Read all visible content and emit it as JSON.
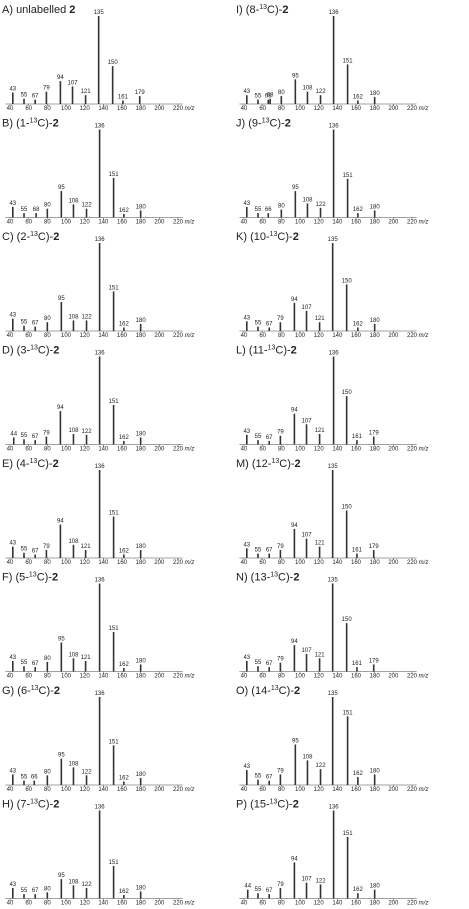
{
  "chart_data": [
    {
      "type": "bar",
      "label": "A)",
      "title": {
        "before": "unlabelled ",
        "compound": "2"
      },
      "x": [
        43,
        55,
        67,
        79,
        94,
        107,
        121,
        135,
        150,
        161,
        179
      ],
      "values": [
        13,
        6,
        5,
        14,
        26,
        20,
        10,
        100,
        43,
        4,
        9
      ],
      "xlim": [
        35,
        225
      ],
      "ylim": [
        0,
        100
      ],
      "xticks": [
        40,
        60,
        80,
        100,
        120,
        140,
        160,
        180,
        200,
        220
      ],
      "xlabel": "m/z",
      "color": "#333333"
    },
    {
      "type": "bar",
      "label": "B)",
      "title": {
        "before": "(1-",
        "isotope": "13",
        "after": "C)-",
        "compound": "2"
      },
      "x": [
        43,
        55,
        68,
        80,
        95,
        108,
        122,
        136,
        151,
        162,
        180
      ],
      "values": [
        12,
        5,
        5,
        10,
        30,
        15,
        10,
        100,
        45,
        4,
        8
      ],
      "xlim": [
        35,
        225
      ],
      "ylim": [
        0,
        100
      ],
      "xticks": [
        40,
        60,
        80,
        100,
        120,
        140,
        160,
        180,
        200,
        220
      ],
      "xlabel": "m/z",
      "color": "#333333"
    },
    {
      "type": "bar",
      "label": "C)",
      "title": {
        "before": "(2-",
        "isotope": "13",
        "after": "C)-",
        "compound": "2"
      },
      "x": [
        43,
        55,
        67,
        80,
        95,
        108,
        122,
        136,
        151,
        162,
        180
      ],
      "values": [
        14,
        6,
        5,
        10,
        33,
        12,
        12,
        100,
        45,
        4,
        8
      ],
      "xlim": [
        35,
        225
      ],
      "ylim": [
        0,
        100
      ],
      "xticks": [
        40,
        60,
        80,
        100,
        120,
        140,
        160,
        180,
        200,
        220
      ],
      "xlabel": "m/z",
      "color": "#333333"
    },
    {
      "type": "bar",
      "label": "D)",
      "title": {
        "before": "(3-",
        "isotope": "13",
        "after": "C)-",
        "compound": "2"
      },
      "x": [
        44,
        55,
        67,
        79,
        94,
        108,
        122,
        136,
        151,
        162,
        180
      ],
      "values": [
        8,
        6,
        5,
        9,
        38,
        12,
        11,
        100,
        45,
        4,
        8
      ],
      "xlim": [
        35,
        225
      ],
      "ylim": [
        0,
        100
      ],
      "xticks": [
        40,
        60,
        80,
        100,
        120,
        140,
        160,
        180,
        200,
        220
      ],
      "xlabel": "m/z",
      "color": "#333333"
    },
    {
      "type": "bar",
      "label": "E)",
      "title": {
        "before": "(4-",
        "isotope": "13",
        "after": "C)-",
        "compound": "2"
      },
      "x": [
        43,
        55,
        67,
        79,
        94,
        108,
        121,
        136,
        151,
        162,
        180
      ],
      "values": [
        13,
        6,
        4,
        9,
        38,
        15,
        9,
        100,
        47,
        4,
        9
      ],
      "xlim": [
        35,
        225
      ],
      "ylim": [
        0,
        100
      ],
      "xticks": [
        40,
        60,
        80,
        100,
        120,
        140,
        160,
        180,
        200,
        220
      ],
      "xlabel": "m/z",
      "color": "#333333"
    },
    {
      "type": "bar",
      "label": "F)",
      "title": {
        "before": "(5-",
        "isotope": "13",
        "after": "C)-",
        "compound": "2"
      },
      "x": [
        43,
        55,
        67,
        80,
        95,
        108,
        121,
        136,
        151,
        162,
        180
      ],
      "values": [
        12,
        6,
        5,
        11,
        33,
        15,
        12,
        100,
        45,
        4,
        8
      ],
      "xlim": [
        35,
        225
      ],
      "ylim": [
        0,
        100
      ],
      "xticks": [
        40,
        60,
        80,
        100,
        120,
        140,
        160,
        180,
        200,
        220
      ],
      "xlabel": "m/z",
      "color": "#333333"
    },
    {
      "type": "bar",
      "label": "G)",
      "title": {
        "before": "(6-",
        "isotope": "13",
        "after": "C)-",
        "compound": "2"
      },
      "x": [
        43,
        55,
        66,
        80,
        95,
        108,
        122,
        136,
        151,
        162,
        180
      ],
      "values": [
        12,
        5,
        5,
        11,
        30,
        20,
        11,
        100,
        45,
        4,
        8
      ],
      "xlim": [
        35,
        225
      ],
      "ylim": [
        0,
        100
      ],
      "xticks": [
        40,
        60,
        80,
        100,
        120,
        140,
        160,
        180,
        200,
        220
      ],
      "xlabel": "m/z",
      "color": "#333333"
    },
    {
      "type": "bar",
      "label": "H)",
      "title": {
        "before": "(7-",
        "isotope": "13",
        "after": "C)-",
        "compound": "2"
      },
      "x": [
        43,
        55,
        67,
        80,
        95,
        108,
        122,
        136,
        151,
        162,
        180
      ],
      "values": [
        12,
        5,
        5,
        7,
        22,
        15,
        12,
        100,
        37,
        4,
        8
      ],
      "xlim": [
        35,
        225
      ],
      "ylim": [
        0,
        100
      ],
      "xticks": [
        40,
        60,
        80,
        100,
        120,
        140,
        160,
        180,
        200,
        220
      ],
      "xlabel": "m/z",
      "color": "#333333"
    },
    {
      "type": "bar",
      "label": "I)",
      "title": {
        "before": "(8-",
        "isotope": "13",
        "after": "C)-",
        "compound": "2"
      },
      "x": [
        43,
        55,
        66,
        68,
        80,
        95,
        108,
        122,
        136,
        151,
        162,
        180
      ],
      "values": [
        10,
        5,
        5,
        6,
        9,
        28,
        14,
        10,
        100,
        45,
        4,
        8
      ],
      "xlim": [
        35,
        225
      ],
      "ylim": [
        0,
        100
      ],
      "xticks": [
        40,
        60,
        80,
        100,
        120,
        140,
        160,
        180,
        200,
        220
      ],
      "xlabel": "m/z",
      "color": "#333333"
    },
    {
      "type": "bar",
      "label": "J)",
      "title": {
        "before": "(9-",
        "isotope": "13",
        "after": "C)-",
        "compound": "2"
      },
      "x": [
        43,
        55,
        66,
        80,
        95,
        108,
        122,
        136,
        151,
        162,
        180
      ],
      "values": [
        12,
        5,
        5,
        9,
        30,
        16,
        11,
        100,
        44,
        5,
        8
      ],
      "xlim": [
        35,
        225
      ],
      "ylim": [
        0,
        100
      ],
      "xticks": [
        40,
        60,
        80,
        100,
        120,
        140,
        160,
        180,
        200,
        220
      ],
      "xlabel": "m/z",
      "color": "#333333"
    },
    {
      "type": "bar",
      "label": "K)",
      "title": {
        "before": "(10-",
        "isotope": "13",
        "after": "C)-",
        "compound": "2"
      },
      "x": [
        43,
        55,
        67,
        79,
        94,
        107,
        121,
        135,
        150,
        162,
        180
      ],
      "values": [
        11,
        5,
        4,
        10,
        32,
        23,
        10,
        100,
        53,
        4,
        8
      ],
      "xlim": [
        35,
        225
      ],
      "ylim": [
        0,
        100
      ],
      "xticks": [
        40,
        60,
        80,
        100,
        120,
        140,
        160,
        180,
        200,
        220
      ],
      "xlabel": "m/z",
      "color": "#333333"
    },
    {
      "type": "bar",
      "label": "L)",
      "title": {
        "before": "(11-",
        "isotope": "13",
        "after": "C)-",
        "compound": "2"
      },
      "x": [
        43,
        55,
        67,
        79,
        94,
        107,
        121,
        136,
        150,
        161,
        179
      ],
      "values": [
        11,
        5,
        4,
        10,
        35,
        23,
        12,
        100,
        55,
        5,
        9
      ],
      "xlim": [
        35,
        225
      ],
      "ylim": [
        0,
        100
      ],
      "xticks": [
        40,
        60,
        80,
        100,
        120,
        140,
        160,
        180,
        200,
        220
      ],
      "xlabel": "m/z",
      "color": "#333333"
    },
    {
      "type": "bar",
      "label": "M)",
      "title": {
        "before": "(12-",
        "isotope": "13",
        "after": "C)-",
        "compound": "2"
      },
      "x": [
        43,
        55,
        67,
        79,
        94,
        107,
        121,
        135,
        150,
        161,
        179
      ],
      "values": [
        11,
        5,
        5,
        9,
        33,
        22,
        13,
        100,
        54,
        5,
        9
      ],
      "xlim": [
        35,
        225
      ],
      "ylim": [
        0,
        100
      ],
      "xticks": [
        40,
        60,
        80,
        100,
        120,
        140,
        160,
        180,
        200,
        220
      ],
      "xlabel": "m/z",
      "color": "#333333"
    },
    {
      "type": "bar",
      "label": "N)",
      "title": {
        "before": "(13-",
        "isotope": "13",
        "after": "C)-",
        "compound": "2"
      },
      "x": [
        43,
        55,
        67,
        79,
        94,
        107,
        121,
        135,
        150,
        161,
        179
      ],
      "values": [
        12,
        6,
        5,
        10,
        30,
        20,
        15,
        100,
        55,
        5,
        8
      ],
      "xlim": [
        35,
        225
      ],
      "ylim": [
        0,
        100
      ],
      "xticks": [
        40,
        60,
        80,
        100,
        120,
        140,
        160,
        180,
        200,
        220
      ],
      "xlabel": "m/z",
      "color": "#333333"
    },
    {
      "type": "bar",
      "label": "O)",
      "title": {
        "before": "(14-",
        "isotope": "13",
        "after": "C)-",
        "compound": "2"
      },
      "x": [
        43,
        55,
        67,
        79,
        95,
        108,
        122,
        135,
        151,
        162,
        180
      ],
      "values": [
        17,
        6,
        5,
        12,
        46,
        28,
        18,
        100,
        78,
        9,
        12
      ],
      "xlim": [
        35,
        225
      ],
      "ylim": [
        0,
        100
      ],
      "xticks": [
        40,
        60,
        80,
        100,
        120,
        140,
        160,
        180,
        200,
        220
      ],
      "xlabel": "m/z",
      "color": "#333333"
    },
    {
      "type": "bar",
      "label": "P)",
      "title": {
        "before": "(15-",
        "isotope": "13",
        "after": "C)-",
        "compound": "2"
      },
      "x": [
        44,
        55,
        67,
        79,
        94,
        107,
        122,
        136,
        151,
        162,
        180
      ],
      "values": [
        10,
        6,
        5,
        12,
        41,
        18,
        16,
        100,
        70,
        6,
        10
      ],
      "xlim": [
        35,
        225
      ],
      "ylim": [
        0,
        100
      ],
      "xticks": [
        40,
        60,
        80,
        100,
        120,
        140,
        160,
        180,
        200,
        220
      ],
      "xlabel": "m/z",
      "color": "#333333"
    }
  ]
}
